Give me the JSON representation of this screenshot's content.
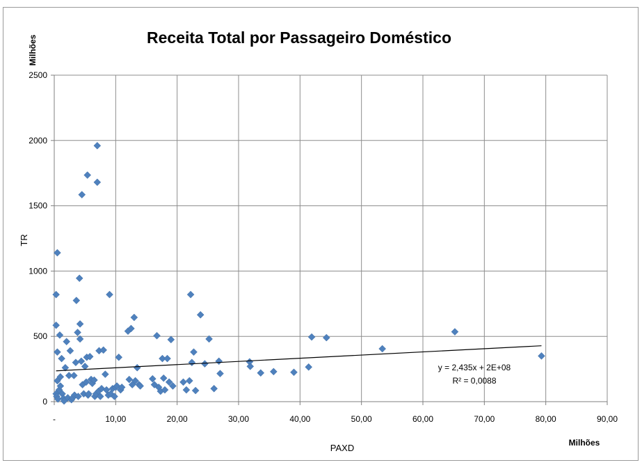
{
  "chart_data": {
    "type": "scatter",
    "title": "Receita Total por Passageiro Doméstico",
    "xlabel": "PAXD",
    "ylabel": "TR",
    "x_unit": "Milhões",
    "y_unit": "Milhões",
    "xlim": [
      0,
      90
    ],
    "ylim": [
      0,
      2500
    ],
    "x_ticks": [
      "-",
      "10,00",
      "20,00",
      "30,00",
      "40,00",
      "50,00",
      "60,00",
      "70,00",
      "80,00",
      "90,00"
    ],
    "y_ticks": [
      "0",
      "500",
      "1000",
      "1500",
      "2000",
      "2500"
    ],
    "grid": true,
    "legend": "none",
    "marker": "diamond",
    "point_color": "#4f81bd",
    "series": [
      {
        "points": [
          [
            0.3,
            820
          ],
          [
            0.3,
            585
          ],
          [
            0.5,
            1140
          ],
          [
            0.5,
            380
          ],
          [
            0.5,
            160
          ],
          [
            0.3,
            60
          ],
          [
            0.4,
            40
          ],
          [
            0.6,
            20
          ],
          [
            0.8,
            90
          ],
          [
            1.0,
            190
          ],
          [
            0.9,
            510
          ],
          [
            1.2,
            330
          ],
          [
            1.0,
            120
          ],
          [
            1.3,
            60
          ],
          [
            1.5,
            25
          ],
          [
            1.6,
            5
          ],
          [
            1.8,
            260
          ],
          [
            2.0,
            460
          ],
          [
            2.2,
            30
          ],
          [
            2.4,
            200
          ],
          [
            2.6,
            390
          ],
          [
            2.8,
            15
          ],
          [
            3.0,
            30
          ],
          [
            3.2,
            200
          ],
          [
            3.3,
            50
          ],
          [
            3.5,
            300
          ],
          [
            3.6,
            775
          ],
          [
            3.8,
            530
          ],
          [
            3.9,
            40
          ],
          [
            4.1,
            945
          ],
          [
            4.2,
            480
          ],
          [
            4.2,
            595
          ],
          [
            4.4,
            310
          ],
          [
            4.5,
            1585
          ],
          [
            4.6,
            130
          ],
          [
            4.8,
            60
          ],
          [
            5.0,
            270
          ],
          [
            5.2,
            150
          ],
          [
            5.3,
            340
          ],
          [
            5.4,
            1735
          ],
          [
            5.5,
            50
          ],
          [
            5.6,
            60
          ],
          [
            5.8,
            345
          ],
          [
            6.0,
            170
          ],
          [
            6.2,
            140
          ],
          [
            6.5,
            165
          ],
          [
            6.6,
            40
          ],
          [
            6.8,
            60
          ],
          [
            7.0,
            1960
          ],
          [
            7.0,
            1680
          ],
          [
            7.2,
            80
          ],
          [
            7.3,
            390
          ],
          [
            7.5,
            40
          ],
          [
            7.7,
            100
          ],
          [
            8.0,
            395
          ],
          [
            8.3,
            210
          ],
          [
            8.5,
            90
          ],
          [
            8.8,
            50
          ],
          [
            9.0,
            820
          ],
          [
            9.2,
            60
          ],
          [
            9.5,
            100
          ],
          [
            9.8,
            40
          ],
          [
            10.0,
            110
          ],
          [
            10.2,
            120
          ],
          [
            10.5,
            340
          ],
          [
            10.8,
            90
          ],
          [
            11.0,
            110
          ],
          [
            12.0,
            540
          ],
          [
            12.2,
            170
          ],
          [
            12.5,
            560
          ],
          [
            12.7,
            130
          ],
          [
            13.0,
            645
          ],
          [
            13.2,
            160
          ],
          [
            13.5,
            260
          ],
          [
            13.8,
            130
          ],
          [
            14.0,
            120
          ],
          [
            16.0,
            175
          ],
          [
            16.3,
            130
          ],
          [
            16.7,
            505
          ],
          [
            17.0,
            110
          ],
          [
            17.3,
            80
          ],
          [
            17.6,
            330
          ],
          [
            17.8,
            180
          ],
          [
            18.0,
            90
          ],
          [
            18.4,
            330
          ],
          [
            18.7,
            150
          ],
          [
            19.0,
            475
          ],
          [
            19.3,
            120
          ],
          [
            21.0,
            150
          ],
          [
            21.5,
            90
          ],
          [
            22.0,
            160
          ],
          [
            22.2,
            820
          ],
          [
            22.4,
            300
          ],
          [
            22.7,
            380
          ],
          [
            23.0,
            85
          ],
          [
            23.8,
            665
          ],
          [
            24.5,
            290
          ],
          [
            25.2,
            480
          ],
          [
            26.0,
            100
          ],
          [
            26.8,
            310
          ],
          [
            27.0,
            215
          ],
          [
            31.8,
            305
          ],
          [
            31.9,
            270
          ],
          [
            33.6,
            220
          ],
          [
            35.7,
            230
          ],
          [
            39.0,
            225
          ],
          [
            41.4,
            265
          ],
          [
            41.9,
            495
          ],
          [
            44.3,
            490
          ],
          [
            53.4,
            405
          ],
          [
            65.2,
            535
          ],
          [
            79.3,
            350
          ]
        ]
      }
    ],
    "trendline": {
      "type": "linear",
      "slope": 2.435,
      "intercept": 235,
      "equation": "y = 2,435x + 2E+08",
      "r2": "R² = 0,0088"
    }
  }
}
